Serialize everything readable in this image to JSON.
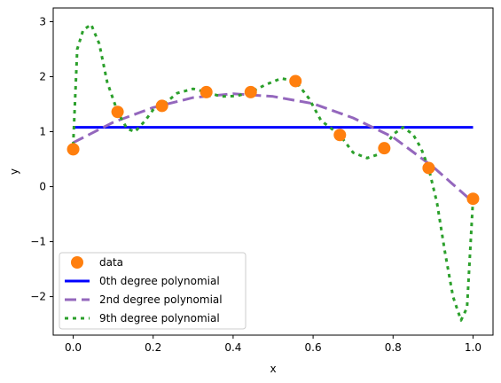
{
  "chart_data": {
    "type": "line",
    "title": "",
    "xlabel": "x",
    "ylabel": "y",
    "xlim": [
      -0.05,
      1.05
    ],
    "ylim": [
      -2.7,
      3.25
    ],
    "grid": false,
    "x_ticks": [
      0.0,
      0.2,
      0.4,
      0.6,
      0.8,
      1.0
    ],
    "x_tick_labels": [
      "0.0",
      "0.2",
      "0.4",
      "0.6",
      "0.8",
      "1.0"
    ],
    "y_ticks": [
      -2,
      -1,
      0,
      1,
      2,
      3
    ],
    "y_tick_labels": [
      "−2",
      "−1",
      "0",
      "1",
      "2",
      "3"
    ],
    "legend": {
      "position": "lower left",
      "entries": [
        "data",
        "0th degree polynomial",
        "2nd degree polynomial",
        "9th degree polynomial"
      ]
    },
    "series": [
      {
        "name": "data",
        "kind": "scatter",
        "color": "#ff7f0e",
        "x": [
          0.0,
          0.111,
          0.222,
          0.333,
          0.444,
          0.556,
          0.667,
          0.778,
          0.889,
          1.0
        ],
        "y": [
          0.68,
          1.36,
          1.47,
          1.72,
          1.72,
          1.92,
          0.94,
          0.7,
          0.34,
          -0.22
        ]
      },
      {
        "name": "0th degree polynomial",
        "kind": "line",
        "color": "#0000ff",
        "dash": "solid",
        "x": [
          0.0,
          1.0
        ],
        "y": [
          1.08,
          1.08
        ]
      },
      {
        "name": "2nd degree polynomial",
        "kind": "line",
        "color": "#9467bd",
        "dash": "dashed",
        "x": [
          0.0,
          0.1,
          0.2,
          0.3,
          0.4,
          0.5,
          0.6,
          0.7,
          0.8,
          0.9,
          1.0
        ],
        "y": [
          0.8,
          1.17,
          1.44,
          1.62,
          1.69,
          1.64,
          1.51,
          1.25,
          0.9,
          0.36,
          -0.28
        ]
      },
      {
        "name": "9th degree polynomial",
        "kind": "line",
        "color": "#2ca02c",
        "dash": "dotted",
        "x": [
          0.0,
          0.01,
          0.025,
          0.045,
          0.065,
          0.085,
          0.111,
          0.135,
          0.155,
          0.18,
          0.205,
          0.222,
          0.26,
          0.3,
          0.333,
          0.37,
          0.41,
          0.444,
          0.48,
          0.52,
          0.556,
          0.59,
          0.62,
          0.667,
          0.7,
          0.735,
          0.76,
          0.778,
          0.8,
          0.825,
          0.85,
          0.87,
          0.889,
          0.91,
          0.93,
          0.95,
          0.97,
          0.985,
          1.0
        ],
        "y": [
          0.75,
          2.5,
          2.85,
          2.95,
          2.6,
          1.9,
          1.36,
          1.05,
          1.0,
          1.2,
          1.45,
          1.47,
          1.7,
          1.78,
          1.72,
          1.64,
          1.65,
          1.72,
          1.85,
          1.97,
          1.92,
          1.6,
          1.2,
          0.94,
          0.62,
          0.52,
          0.58,
          0.7,
          0.95,
          1.08,
          0.95,
          0.7,
          0.34,
          -0.3,
          -1.2,
          -2.0,
          -2.43,
          -2.2,
          -0.22
        ]
      }
    ]
  }
}
